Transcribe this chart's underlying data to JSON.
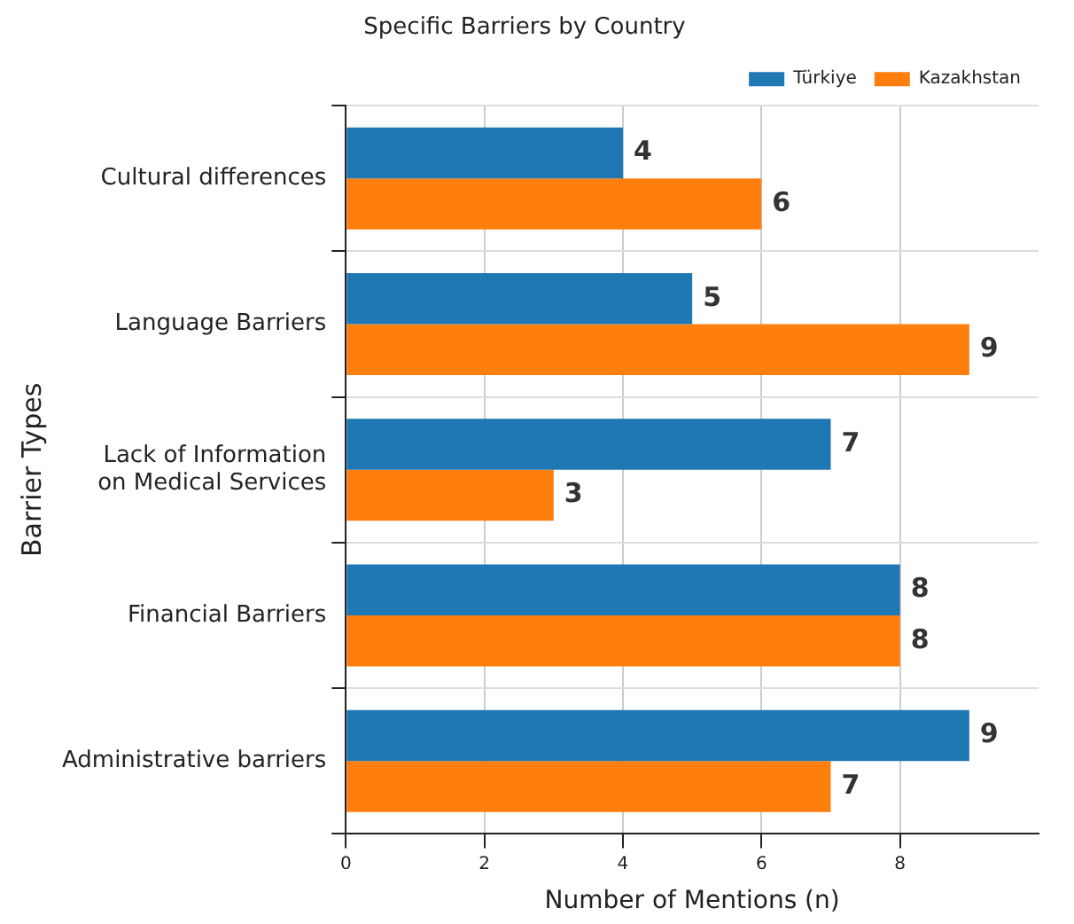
{
  "chart_data": {
    "type": "bar",
    "orientation": "horizontal",
    "title": "Specific Barriers by Country",
    "xlabel": "Number of Mentions (n)",
    "ylabel": "Barrier Types",
    "categories": [
      "Cultural differences",
      "Language Barriers",
      "Lack of Information\non Medical Services",
      "Financial Barriers",
      "Administrative barriers"
    ],
    "series": [
      {
        "name": "Türkiye",
        "color": "#1f77b4",
        "values": [
          4,
          5,
          7,
          8,
          9
        ]
      },
      {
        "name": "Kazakhstan",
        "color": "#ff7f0e",
        "values": [
          6,
          9,
          3,
          8,
          7
        ]
      }
    ],
    "xlim": [
      0,
      10
    ],
    "xticks": [
      0,
      2,
      4,
      6,
      8
    ],
    "grid": true,
    "legend": "top right",
    "data_labels": true
  }
}
